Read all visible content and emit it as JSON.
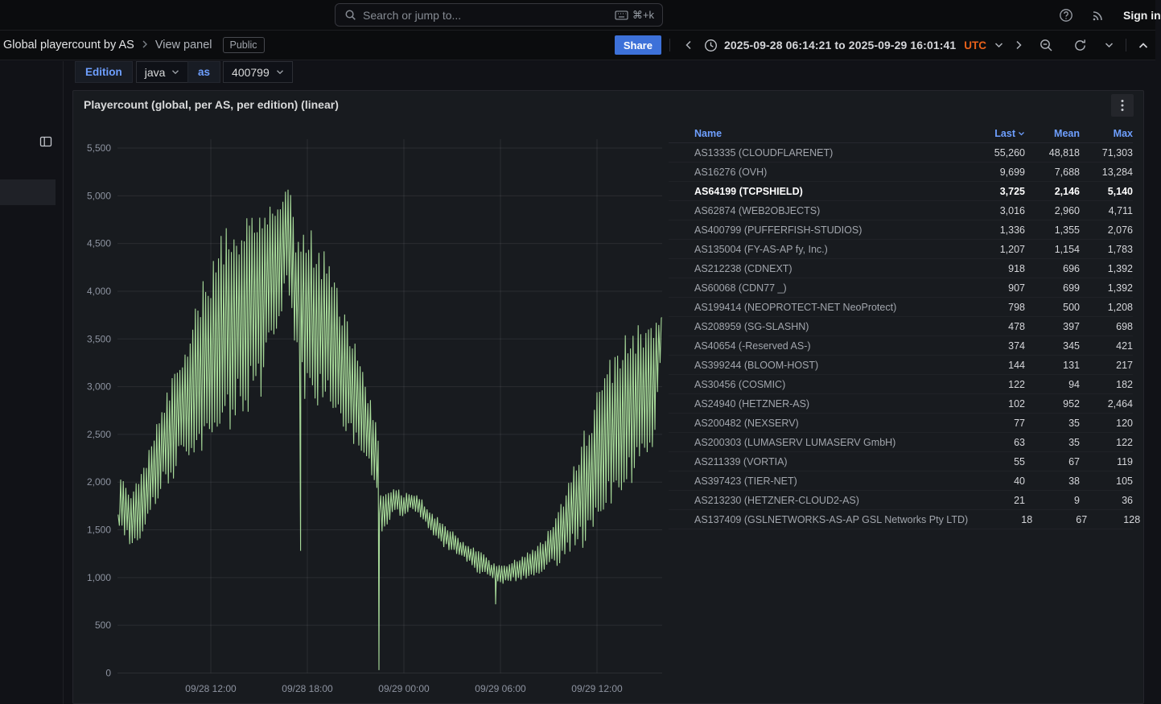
{
  "topbar": {
    "search_placeholder": "Search or jump to...",
    "shortcut": "⌘+k",
    "sign_in": "Sign in"
  },
  "nav": {
    "breadcrumb": {
      "dashboard": "Global playercount by AS",
      "page": "View panel",
      "badge": "Public"
    },
    "share_label": "Share",
    "time_range": {
      "text": "2025-09-28 06:14:21 to 2025-09-29 16:01:41",
      "timezone": "UTC"
    }
  },
  "filters": {
    "edition_label": "Edition",
    "edition_value": "java",
    "as_label": "as",
    "as_value": "400799"
  },
  "panel": {
    "title": "Playercount (global, per AS, per edition) (linear)",
    "legend": {
      "headers": {
        "name": "Name",
        "last": "Last",
        "mean": "Mean",
        "max": "Max"
      },
      "sorted_by": "Last",
      "rows": [
        {
          "name": "AS13335 (CLOUDFLARENET)",
          "color": "#F2495C",
          "last": "55,260",
          "mean": "48,818",
          "max": "71,303",
          "highlighted": false
        },
        {
          "name": "AS16276 (OVH)",
          "color": "#1F60C4",
          "last": "9,699",
          "mean": "7,688",
          "max": "13,284",
          "highlighted": false
        },
        {
          "name": "AS64199 (TCPSHIELD)",
          "color": "#96D98D",
          "last": "3,725",
          "mean": "2,146",
          "max": "5,140",
          "highlighted": true
        },
        {
          "name": "AS62874 (WEB2OBJECTS)",
          "color": "#FFB37E",
          "last": "3,016",
          "mean": "2,960",
          "max": "4,711",
          "highlighted": false
        },
        {
          "name": "AS400799 (PUFFERFISH-STUDIOS)",
          "color": "#642F63",
          "last": "1,336",
          "mean": "1,355",
          "max": "2,076",
          "highlighted": false
        },
        {
          "name": "AS135004 (FY-AS-AP fy, Inc.)",
          "color": "#B877D9",
          "last": "1,207",
          "mean": "1,154",
          "max": "1,783",
          "highlighted": false
        },
        {
          "name": "AS212238 (CDNEXT)",
          "color": "#FF780A",
          "last": "918",
          "mean": "696",
          "max": "1,392",
          "highlighted": false
        },
        {
          "name": "AS60068 (CDN77 _)",
          "color": "#8AB8FF",
          "last": "907",
          "mean": "699",
          "max": "1,392",
          "highlighted": false
        },
        {
          "name": "AS199414 (NEOPROTECT-NET NeoProtect)",
          "color": "#C4622D",
          "last": "798",
          "mean": "500",
          "max": "1,208",
          "highlighted": false
        },
        {
          "name": "AS208959 (SG-SLASHN)",
          "color": "#5A3D7E",
          "last": "478",
          "mean": "397",
          "max": "698",
          "highlighted": false
        },
        {
          "name": "AS40654 (-Reserved AS-)",
          "color": "#73BF69",
          "last": "374",
          "mean": "345",
          "max": "421",
          "highlighted": false
        },
        {
          "name": "AS399244 (BLOOM-HOST)",
          "color": "#E8C113",
          "last": "144",
          "mean": "131",
          "max": "217",
          "highlighted": false
        },
        {
          "name": "AS30456 (COSMIC)",
          "color": "#3274D9",
          "last": "122",
          "mean": "94",
          "max": "182",
          "highlighted": false
        },
        {
          "name": "AS24940 (HETZNER-AS)",
          "color": "#56A64B",
          "last": "102",
          "mean": "952",
          "max": "2,464",
          "highlighted": false
        },
        {
          "name": "AS200482 (NEXSERV)",
          "color": "#A93025",
          "last": "77",
          "mean": "35",
          "max": "120",
          "highlighted": false
        },
        {
          "name": "AS200303 (LUMASERV LUMASERV GmbH)",
          "color": "#3A6FA8",
          "last": "63",
          "mean": "35",
          "max": "122",
          "highlighted": false
        },
        {
          "name": "AS211339 (VORTIA)",
          "color": "#4FC3E8",
          "last": "55",
          "mean": "67",
          "max": "119",
          "highlighted": false
        },
        {
          "name": "AS397423 (TIER-NET)",
          "color": "#F2C78C",
          "last": "40",
          "mean": "38",
          "max": "105",
          "highlighted": false
        },
        {
          "name": "AS213230 (HETZNER-CLOUD2-AS)",
          "color": "#F2CC0C",
          "last": "21",
          "mean": "9",
          "max": "36",
          "highlighted": false
        },
        {
          "name": "AS137409 (GSLNETWORKS-AS-AP GSL Networks Pty LTD)",
          "color": "#705DA0",
          "last": "18",
          "mean": "67",
          "max": "128",
          "highlighted": false
        }
      ]
    }
  },
  "chart_data": {
    "type": "line",
    "title": "Playercount (global, per AS, per edition) (linear)",
    "visible_series": "AS64199 (TCPSHIELD)",
    "line_color": "#A8DB9A",
    "stats": {
      "last": 3725,
      "mean": 2146,
      "max": 5140
    },
    "time_range": {
      "from": "2025-09-28 06:14:21",
      "to": "2025-09-29 16:01:41",
      "timezone": "UTC"
    },
    "x_axis": {
      "unit": "hours since 2025-09-28 00:00 UTC",
      "range": [
        6.24,
        40.03
      ],
      "ticks": [
        {
          "h": 12,
          "label": "09/28 12:00"
        },
        {
          "h": 18,
          "label": "09/28 18:00"
        },
        {
          "h": 24,
          "label": "09/29 00:00"
        },
        {
          "h": 30,
          "label": "09/29 06:00"
        },
        {
          "h": 36,
          "label": "09/29 12:00"
        }
      ]
    },
    "y_axis": {
      "range": [
        0,
        5500
      ],
      "tick_step": 500,
      "tick_labels": [
        "0",
        "500",
        "1,000",
        "1,500",
        "2,000",
        "2,500",
        "3,000",
        "3,500",
        "4,000",
        "4,500",
        "5,000",
        "5,500"
      ]
    },
    "envelope_keyframes": [
      [
        6.24,
        1500,
        1700
      ],
      [
        6.4,
        1450,
        2050
      ],
      [
        7.0,
        1300,
        1950
      ],
      [
        7.5,
        1350,
        2050
      ],
      [
        8.0,
        1500,
        2250
      ],
      [
        8.5,
        1650,
        2550
      ],
      [
        9.0,
        1800,
        2900
      ],
      [
        9.5,
        1950,
        3100
      ],
      [
        10.0,
        2050,
        3300
      ],
      [
        10.5,
        2100,
        3550
      ],
      [
        11.0,
        2050,
        3850
      ],
      [
        11.5,
        2150,
        4100
      ],
      [
        12.0,
        2250,
        4300
      ],
      [
        12.5,
        2350,
        4550
      ],
      [
        13.0,
        2450,
        4700
      ],
      [
        13.5,
        2500,
        4800
      ],
      [
        14.0,
        2550,
        4850
      ],
      [
        14.5,
        2600,
        4900
      ],
      [
        15.0,
        2700,
        4900
      ],
      [
        15.5,
        3000,
        4950
      ],
      [
        16.0,
        3400,
        5050
      ],
      [
        16.5,
        3800,
        5140
      ],
      [
        16.9,
        3900,
        5100
      ],
      [
        17.2,
        3200,
        4750
      ],
      [
        17.5,
        2900,
        4650
      ],
      [
        18.2,
        2700,
        4650
      ],
      [
        18.8,
        2650,
        4500
      ],
      [
        19.3,
        2600,
        4350
      ],
      [
        19.8,
        2500,
        4100
      ],
      [
        20.3,
        2400,
        3850
      ],
      [
        20.8,
        2300,
        3550
      ],
      [
        21.3,
        2250,
        3250
      ],
      [
        21.8,
        2100,
        2950
      ],
      [
        22.2,
        1950,
        2750
      ],
      [
        22.38,
        1800,
        2600
      ],
      [
        22.55,
        1450,
        1900
      ],
      [
        23.0,
        1550,
        1900
      ],
      [
        23.5,
        1650,
        1950
      ],
      [
        24.0,
        1600,
        1900
      ],
      [
        24.5,
        1700,
        1900
      ],
      [
        25.0,
        1600,
        1850
      ],
      [
        25.5,
        1500,
        1750
      ],
      [
        26.0,
        1400,
        1650
      ],
      [
        26.5,
        1300,
        1550
      ],
      [
        27.0,
        1250,
        1500
      ],
      [
        27.5,
        1200,
        1400
      ],
      [
        28.0,
        1150,
        1350
      ],
      [
        28.5,
        1050,
        1300
      ],
      [
        29.0,
        1000,
        1250
      ],
      [
        29.5,
        950,
        1150
      ],
      [
        30.0,
        900,
        1150
      ],
      [
        30.5,
        920,
        1150
      ],
      [
        31.0,
        950,
        1200
      ],
      [
        31.5,
        950,
        1250
      ],
      [
        32.0,
        1000,
        1300
      ],
      [
        32.5,
        1000,
        1400
      ],
      [
        33.0,
        1050,
        1500
      ],
      [
        33.5,
        1100,
        1650
      ],
      [
        34.0,
        1150,
        1900
      ],
      [
        34.5,
        1200,
        2200
      ],
      [
        35.0,
        1250,
        2450
      ],
      [
        35.5,
        1350,
        2700
      ],
      [
        36.0,
        1450,
        2950
      ],
      [
        36.5,
        1550,
        3200
      ],
      [
        37.0,
        1650,
        3400
      ],
      [
        37.5,
        1750,
        3500
      ],
      [
        38.0,
        1850,
        3600
      ],
      [
        38.5,
        1950,
        3650
      ],
      [
        39.0,
        2100,
        3700
      ],
      [
        39.5,
        2300,
        3720
      ],
      [
        40.03,
        3300,
        3750
      ]
    ],
    "dips": [
      [
        17.58,
        1280
      ],
      [
        22.45,
        30
      ],
      [
        29.7,
        720
      ]
    ],
    "end_value": 3725,
    "grid": true,
    "legend_position": "right-table"
  },
  "colors": {
    "accent_blue": "#3D71D9",
    "link_blue": "#6E9FFF",
    "utc_orange": "#E8611A",
    "line_green": "#A8DB9A",
    "page_bg": "#111217",
    "panel_bg": "#181B1F",
    "topbar_bg": "#0B0C0E"
  }
}
